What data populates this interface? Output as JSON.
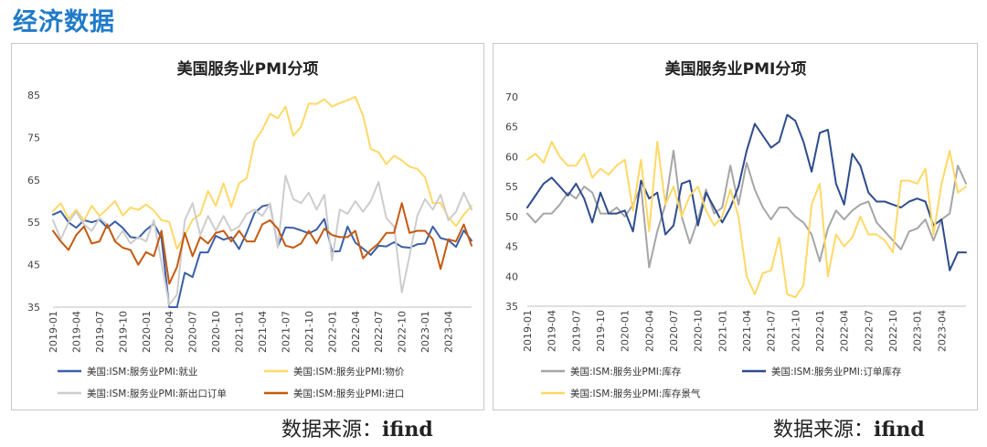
{
  "header": {
    "title": "经济数据"
  },
  "sources": [
    {
      "label": "数据来源：",
      "value": "ifind"
    },
    {
      "label": "数据来源：",
      "value": "ifind"
    }
  ],
  "chart_data": [
    {
      "type": "line",
      "title": "美国服务业PMI分项",
      "ylim": [
        35,
        85
      ],
      "yticks": [
        35,
        45,
        55,
        65,
        75,
        85
      ],
      "x_start": "2019-01",
      "x_end": "2023-07",
      "x_tick_labels": [
        "2019-01",
        "2019-04",
        "2019-07",
        "2019-10",
        "2020-01",
        "2020-04",
        "2020-07",
        "2020-10",
        "2021-01",
        "2021-04",
        "2021-07",
        "2021-10",
        "2022-01",
        "2022-04",
        "2022-07",
        "2022-10",
        "2023-01",
        "2023-04"
      ],
      "grid": false,
      "legend_position": "bottom",
      "series": [
        {
          "name": "美国:ISM:服务业PMI:就业",
          "color": "#3c5fa8",
          "values": [
            56.8,
            57.6,
            55.0,
            53.7,
            55.5,
            55.0,
            55.6,
            53.7,
            55.2,
            53.7,
            51.5,
            51.3,
            53.2,
            54.7,
            51.3,
            30.0,
            31.8,
            43.1,
            42.1,
            47.9,
            47.9,
            51.8,
            50.9,
            51.5,
            48.7,
            52.6,
            57.2,
            58.8,
            59.2,
            49.3,
            53.8,
            53.7,
            53.1,
            52.4,
            53.3,
            55.8,
            48.1,
            48.2,
            54.0,
            50.2,
            48.8,
            47.3,
            49.5,
            49.3,
            50.3,
            49.2,
            49.0,
            49.8,
            50.0,
            54.0,
            51.3,
            50.8,
            49.2,
            53.1,
            50.7
          ]
        },
        {
          "name": "美国:ISM:服务业PMI:物价",
          "color": "#ffd966",
          "values": [
            57.6,
            59.5,
            55.8,
            58.0,
            55.4,
            58.9,
            56.5,
            58.2,
            60.0,
            56.6,
            58.5,
            57.9,
            59.2,
            57.8,
            55.5,
            55.1,
            48.7,
            52.0,
            55.6,
            56.9,
            62.4,
            58.9,
            64.2,
            58.6,
            64.2,
            65.4,
            74.0,
            76.8,
            80.6,
            79.5,
            82.3,
            75.4,
            77.5,
            83.0,
            82.9,
            84.0,
            82.3,
            83.1,
            83.8,
            84.6,
            80.1,
            72.3,
            71.5,
            68.7,
            70.7,
            69.6,
            68.1,
            67.6,
            65.6,
            59.5,
            59.6,
            56.2,
            54.1,
            56.8,
            58.9
          ]
        },
        {
          "name": "美国:ISM:服务业PMI:新出口订单",
          "color": "#cdcdcd",
          "values": [
            55.5,
            51.0,
            55.0,
            57.5,
            54.5,
            53.0,
            56.0,
            54.5,
            50.5,
            53.0,
            50.0,
            51.5,
            50.5,
            55.5,
            45.5,
            35.5,
            38.0,
            55.5,
            59.5,
            52.0,
            56.5,
            53.0,
            56.5,
            53.0,
            54.0,
            57.0,
            58.0,
            56.5,
            59.5,
            49.0,
            66.0,
            60.5,
            59.5,
            62.0,
            58.0,
            61.5,
            46.0,
            58.0,
            57.0,
            60.0,
            57.5,
            60.0,
            64.5,
            56.0,
            54.0,
            38.5,
            47.0,
            56.5,
            60.5,
            58.0,
            61.5,
            55.5,
            57.5,
            62.0,
            58.0
          ]
        },
        {
          "name": "美国:ISM:服务业PMI:进口",
          "color": "#c55a11",
          "values": [
            53.0,
            50.5,
            48.5,
            52.0,
            54.0,
            50.0,
            50.5,
            54.5,
            50.5,
            49.0,
            48.5,
            45.0,
            48.0,
            47.0,
            53.0,
            40.5,
            44.5,
            52.5,
            47.0,
            51.5,
            50.0,
            52.5,
            53.0,
            50.5,
            53.0,
            50.5,
            50.5,
            54.5,
            55.5,
            53.5,
            49.5,
            49.0,
            50.0,
            53.0,
            50.0,
            53.5,
            52.0,
            51.5,
            51.5,
            53.0,
            46.5,
            48.5,
            50.0,
            52.5,
            52.5,
            59.5,
            52.5,
            53.0,
            53.0,
            51.0,
            44.0,
            51.0,
            50.5,
            54.5,
            49.5
          ]
        }
      ]
    },
    {
      "type": "line",
      "title": "美国服务业PMI分项",
      "ylim": [
        35,
        70
      ],
      "yticks": [
        35,
        40,
        45,
        50,
        55,
        60,
        65,
        70
      ],
      "x_start": "2019-01",
      "x_end": "2023-07",
      "x_tick_labels": [
        "2019-01",
        "2019-04",
        "2019-07",
        "2019-10",
        "2020-01",
        "2020-04",
        "2020-07",
        "2020-10",
        "2021-01",
        "2021-04",
        "2021-07",
        "2021-10",
        "2022-01",
        "2022-04",
        "2022-07",
        "2022-10",
        "2023-01",
        "2023-04"
      ],
      "grid": false,
      "legend_position": "bottom",
      "series": [
        {
          "name": "美国:ISM:服务业PMI:库存",
          "color": "#a6a6a6",
          "values": [
            50.5,
            49.0,
            50.5,
            50.5,
            52.0,
            54.0,
            53.0,
            55.0,
            54.0,
            50.5,
            50.5,
            51.5,
            50.0,
            52.0,
            55.0,
            41.5,
            47.5,
            52.0,
            61.0,
            50.0,
            45.5,
            49.5,
            54.5,
            50.5,
            51.5,
            58.5,
            52.0,
            59.0,
            54.5,
            51.5,
            49.5,
            51.5,
            51.5,
            50.0,
            49.0,
            47.0,
            42.5,
            48.0,
            51.0,
            49.5,
            51.0,
            52.0,
            52.5,
            49.0,
            47.5,
            46.0,
            44.5,
            47.5,
            48.0,
            49.5,
            46.0,
            49.5,
            50.5,
            58.5,
            55.5
          ]
        },
        {
          "name": "美国:ISM:服务业PMI:订单库存",
          "color": "#2e4c8c",
          "values": [
            51.5,
            53.5,
            55.5,
            56.5,
            55.0,
            53.5,
            55.5,
            53.0,
            49.0,
            54.0,
            50.5,
            50.5,
            51.0,
            47.5,
            56.0,
            53.0,
            54.0,
            47.0,
            48.5,
            55.5,
            56.0,
            48.5,
            54.0,
            51.5,
            49.0,
            51.5,
            55.0,
            61.0,
            65.5,
            63.5,
            61.5,
            62.5,
            67.0,
            66.0,
            62.5,
            57.5,
            64.0,
            64.5,
            55.5,
            52.0,
            60.5,
            58.5,
            54.0,
            52.5,
            52.5,
            52.0,
            51.5,
            52.5,
            53.0,
            52.5,
            48.5,
            49.5,
            41.0,
            44.0,
            44.0
          ]
        },
        {
          "name": "美国:ISM:服务业PMI:库存景气",
          "color": "#ffd966",
          "values": [
            59.5,
            60.5,
            59.0,
            62.5,
            60.0,
            58.5,
            58.5,
            60.5,
            56.5,
            58.0,
            57.0,
            58.5,
            59.5,
            51.0,
            59.5,
            47.5,
            62.5,
            52.0,
            55.0,
            50.0,
            53.5,
            55.0,
            51.0,
            48.5,
            50.0,
            54.5,
            50.0,
            40.0,
            37.0,
            40.5,
            41.0,
            46.5,
            37.0,
            36.5,
            38.5,
            52.0,
            55.5,
            40.0,
            47.0,
            45.0,
            46.5,
            50.0,
            47.0,
            47.0,
            46.0,
            44.0,
            56.0,
            56.0,
            55.5,
            58.0,
            47.0,
            55.5,
            61.0,
            54.0,
            55.0
          ]
        }
      ]
    }
  ]
}
